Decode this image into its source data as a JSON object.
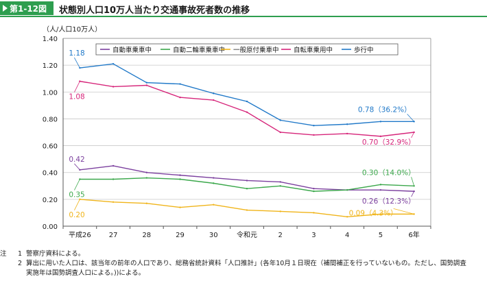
{
  "figure": {
    "number": "第1-12図",
    "title": "状態別人口10万人当たり交通事故死者数の推移"
  },
  "notes": {
    "head": "注",
    "items": [
      {
        "num": "1",
        "text": "警察庁資料による。"
      },
      {
        "num": "2",
        "text": "算出に用いた人口は、該当年の前年の人口であり、総務省統計資料「人口推計」(各年10月１日現在（補間補正を行っていないもの。ただし、国勢調査"
      },
      {
        "num": "",
        "text": "実施年は国勢調査人口による。))による。"
      }
    ]
  },
  "chart_data": {
    "type": "line",
    "ylabel": "（人/人口10万人）",
    "ylim": [
      0,
      1.4
    ],
    "yticks": [
      "0.00",
      "0.20",
      "0.40",
      "0.60",
      "0.80",
      "1.00",
      "1.20",
      "1.40"
    ],
    "categories": [
      "平成26",
      "27",
      "28",
      "29",
      "30",
      "令和元",
      "2",
      "3",
      "4",
      "5",
      "6年"
    ],
    "grid": true,
    "legend_position": "top",
    "series": [
      {
        "name": "自動車乗車中",
        "color": "#7b3f9e",
        "values": [
          0.42,
          0.45,
          0.4,
          0.38,
          0.36,
          0.34,
          0.33,
          0.28,
          0.27,
          0.27,
          0.26
        ]
      },
      {
        "name": "自動二輪車乗車中",
        "color": "#3aa74a",
        "values": [
          0.35,
          0.35,
          0.36,
          0.35,
          0.32,
          0.28,
          0.3,
          0.26,
          0.27,
          0.31,
          0.3
        ]
      },
      {
        "name": "一般原付乗車中",
        "color": "#f0b419",
        "values": [
          0.2,
          0.18,
          0.17,
          0.14,
          0.16,
          0.12,
          0.11,
          0.1,
          0.07,
          0.09,
          0.09
        ]
      },
      {
        "name": "自転車乗用中",
        "color": "#d6257a",
        "values": [
          1.08,
          1.04,
          1.05,
          0.96,
          0.94,
          0.85,
          0.7,
          0.68,
          0.69,
          0.67,
          0.7
        ]
      },
      {
        "name": "歩行中",
        "color": "#1f78c8",
        "values": [
          1.18,
          1.21,
          1.07,
          1.06,
          0.99,
          0.93,
          0.79,
          0.75,
          0.76,
          0.78,
          0.78
        ]
      }
    ],
    "annotations": [
      {
        "series": 4,
        "index": 0,
        "text": "1.18"
      },
      {
        "series": 3,
        "index": 0,
        "text": "1.08"
      },
      {
        "series": 0,
        "index": 0,
        "text": "0.42"
      },
      {
        "series": 1,
        "index": 0,
        "text": "0.35"
      },
      {
        "series": 2,
        "index": 0,
        "text": "0.20"
      },
      {
        "series": 4,
        "index": 10,
        "text": "0.78（36.2%）"
      },
      {
        "series": 3,
        "index": 10,
        "text": "0.70（32.9%）"
      },
      {
        "series": 1,
        "index": 10,
        "text": "0.30（14.0%）"
      },
      {
        "series": 2,
        "index": 10,
        "text": "0.09（4.3%）"
      },
      {
        "series": 0,
        "index": 10,
        "text": "0.26（12.3%）"
      }
    ]
  }
}
